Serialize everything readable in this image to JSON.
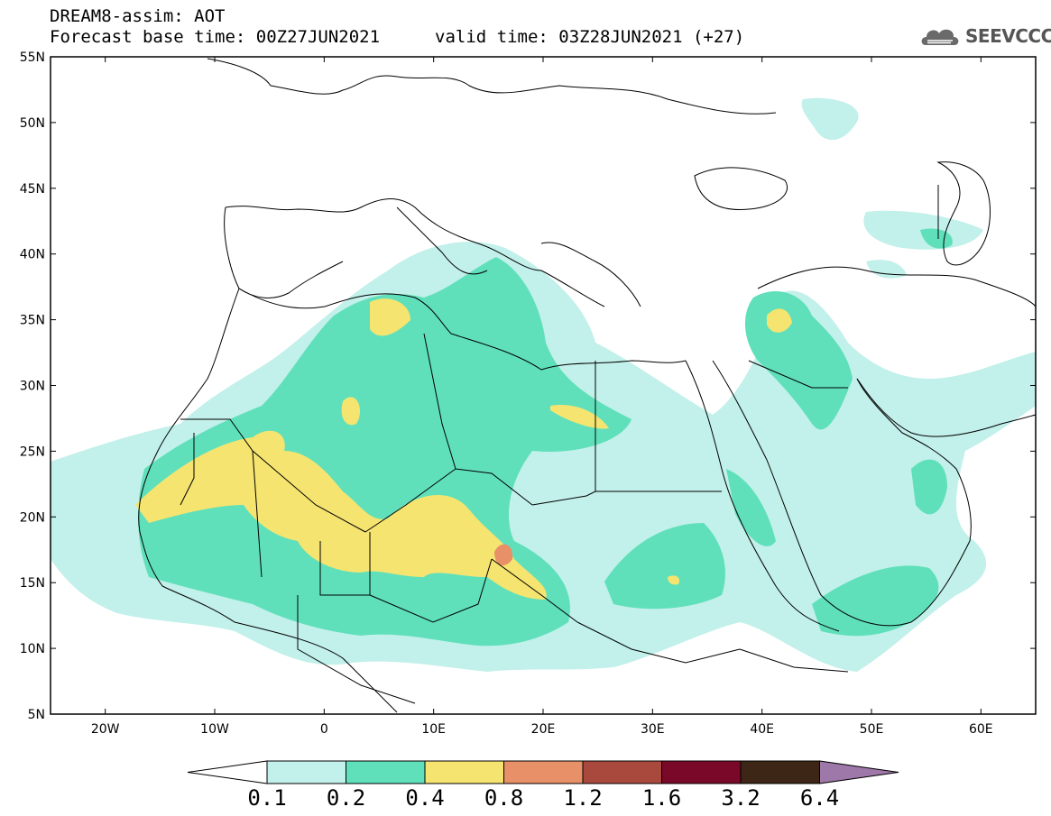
{
  "header": {
    "title": "DREAM8-assim: AOT",
    "base_time": "Forecast base time: 00Z27JUN2021",
    "valid_time": "valid time: 03Z28JUN2021 (+27)"
  },
  "logo": {
    "text": "SEEVCCC",
    "icon": "cloud-icon"
  },
  "map": {
    "lon_range": [
      -25,
      65
    ],
    "lat_range": [
      5,
      55
    ],
    "lon_ticks": [
      {
        "lon": -20,
        "label": "20W"
      },
      {
        "lon": -10,
        "label": "10W"
      },
      {
        "lon": 0,
        "label": "0"
      },
      {
        "lon": 10,
        "label": "10E"
      },
      {
        "lon": 20,
        "label": "20E"
      },
      {
        "lon": 30,
        "label": "30E"
      },
      {
        "lon": 40,
        "label": "40E"
      },
      {
        "lon": 50,
        "label": "50E"
      },
      {
        "lon": 60,
        "label": "60E"
      }
    ],
    "lat_ticks": [
      {
        "lat": 55,
        "label": "55N"
      },
      {
        "lat": 50,
        "label": "50N"
      },
      {
        "lat": 45,
        "label": "45N"
      },
      {
        "lat": 40,
        "label": "40N"
      },
      {
        "lat": 35,
        "label": "35N"
      },
      {
        "lat": 30,
        "label": "30N"
      },
      {
        "lat": 25,
        "label": "25N"
      },
      {
        "lat": 20,
        "label": "20N"
      },
      {
        "lat": 15,
        "label": "15N"
      },
      {
        "lat": 10,
        "label": "10N"
      },
      {
        "lat": 5,
        "label": "5N"
      }
    ]
  },
  "colorbar": {
    "colors": [
      "#ffffff",
      "#c2f0ea",
      "#5fe0bb",
      "#f5e470",
      "#e89068",
      "#a9493d",
      "#7a0828",
      "#3e2616",
      "#9e78a8"
    ],
    "labels": [
      "0.1",
      "0.2",
      "0.4",
      "0.8",
      "1.2",
      "1.6",
      "3.2",
      "6.4"
    ]
  }
}
